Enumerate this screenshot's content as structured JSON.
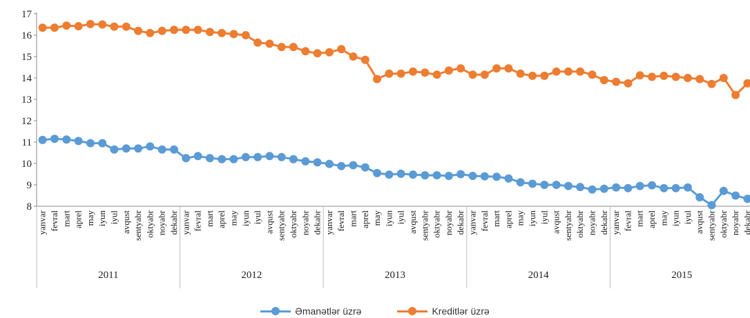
{
  "chart_data": {
    "type": "line",
    "title": "",
    "xlabel": "",
    "ylabel": "",
    "ylim": [
      8,
      17
    ],
    "yticks": [
      8,
      9,
      10,
      11,
      12,
      13,
      14,
      15,
      16,
      17
    ],
    "grid": false,
    "legend_position": "bottom",
    "month_labels": [
      "yanvar",
      "fevral",
      "mart",
      "aprel",
      "may",
      "iyun",
      "iyul",
      "avqust",
      "sentyabr",
      "oktyabr",
      "noyabr",
      "dekabr"
    ],
    "years": [
      "2011",
      "2012",
      "2013",
      "2014",
      "2015"
    ],
    "series": [
      {
        "name": "Əmanətlər üzrə",
        "color": "#5b9bd5",
        "values": [
          11.1,
          11.15,
          11.12,
          11.05,
          10.95,
          10.95,
          10.65,
          10.7,
          10.7,
          10.8,
          10.65,
          10.65,
          10.25,
          10.35,
          10.25,
          10.2,
          10.2,
          10.3,
          10.3,
          10.35,
          10.3,
          10.2,
          10.1,
          10.05,
          9.98,
          9.88,
          9.92,
          9.82,
          9.55,
          9.48,
          9.52,
          9.48,
          9.45,
          9.45,
          9.42,
          9.5,
          9.42,
          9.4,
          9.38,
          9.3,
          9.12,
          9.05,
          9.0,
          9.0,
          8.95,
          8.9,
          8.78,
          8.82,
          8.88,
          8.85,
          8.95,
          8.98,
          8.85,
          8.85,
          8.88,
          8.42,
          8.05,
          8.72,
          8.5,
          8.35
        ]
      },
      {
        "name": "Kreditlər üzrə",
        "color": "#ed7d31",
        "values": [
          16.35,
          16.35,
          16.45,
          16.42,
          16.52,
          16.5,
          16.4,
          16.4,
          16.2,
          16.1,
          16.2,
          16.25,
          16.25,
          16.25,
          16.15,
          16.1,
          16.05,
          16.0,
          15.65,
          15.6,
          15.45,
          15.45,
          15.25,
          15.15,
          15.2,
          15.35,
          15.0,
          14.85,
          13.95,
          14.2,
          14.2,
          14.3,
          14.25,
          14.15,
          14.35,
          14.45,
          14.15,
          14.15,
          14.45,
          14.45,
          14.2,
          14.1,
          14.1,
          14.3,
          14.3,
          14.3,
          14.15,
          13.9,
          13.82,
          13.75,
          14.12,
          14.05,
          14.1,
          14.05,
          14.0,
          13.95,
          13.72,
          14.0,
          13.2,
          13.75
        ]
      }
    ]
  }
}
